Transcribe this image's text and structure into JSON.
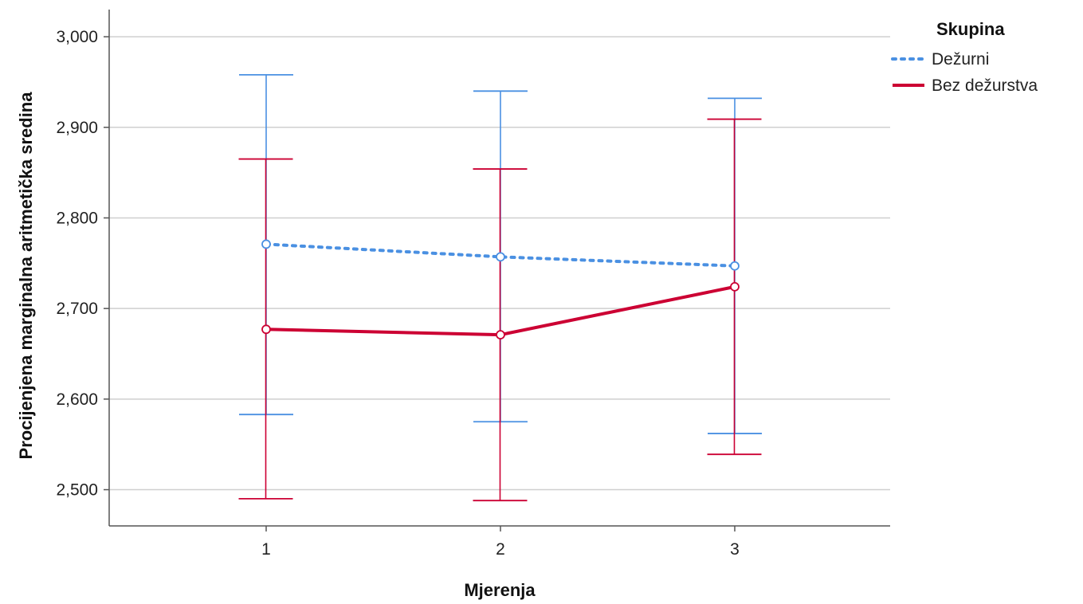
{
  "chart_data": {
    "type": "line",
    "xlabel": "Mjerenja",
    "ylabel": "Procijenjena marginalna aritmetička sredina",
    "categories": [
      "1",
      "2",
      "3"
    ],
    "ylim": [
      2.46,
      3.03
    ],
    "yticks": [
      2.5,
      2.6,
      2.7,
      2.8,
      2.9,
      3.0
    ],
    "ytick_labels": [
      "2,500",
      "2,600",
      "2,700",
      "2,800",
      "2,900",
      "3,000"
    ],
    "grid": true,
    "legend": {
      "title": "Skupina",
      "placement": "top-right"
    },
    "series": [
      {
        "name": "Dežurni",
        "color": "#4a90e2",
        "line_style": "dotted",
        "values": [
          2.771,
          2.757,
          2.747
        ],
        "error_low": [
          2.583,
          2.575,
          2.562
        ],
        "error_high": [
          2.958,
          2.94,
          2.932
        ]
      },
      {
        "name": "Bez dežurstva",
        "color": "#cc0033",
        "line_style": "solid",
        "values": [
          2.677,
          2.671,
          2.724
        ],
        "error_low": [
          2.49,
          2.488,
          2.539
        ],
        "error_high": [
          2.865,
          2.854,
          2.909
        ]
      }
    ]
  }
}
